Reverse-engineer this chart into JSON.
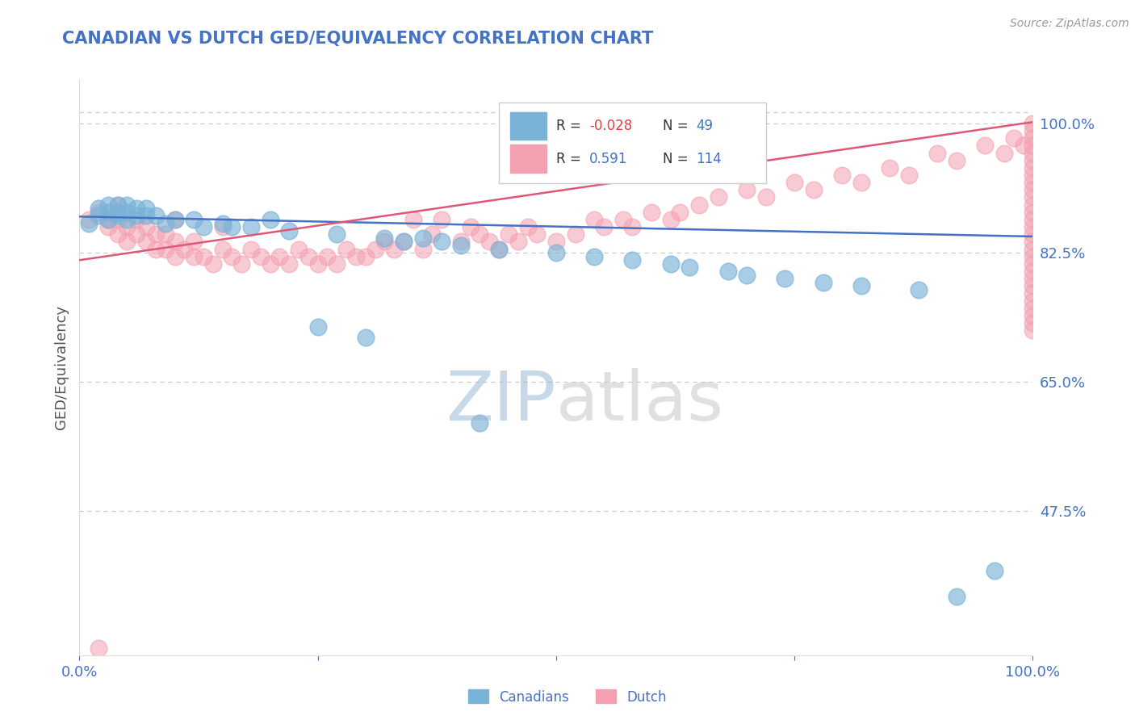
{
  "title": "CANADIAN VS DUTCH GED/EQUIVALENCY CORRELATION CHART",
  "source_text": "Source: ZipAtlas.com",
  "ylabel": "GED/Equivalency",
  "watermark": "ZIPatlas",
  "x_min": 0.0,
  "x_max": 1.0,
  "y_min": 0.28,
  "y_max": 1.06,
  "yticks": [
    0.475,
    0.65,
    0.825,
    1.0
  ],
  "ytick_labels": [
    "47.5%",
    "65.0%",
    "82.5%",
    "100.0%"
  ],
  "legend_R_canadian": "-0.028",
  "legend_N_canadian": "49",
  "legend_R_dutch": "0.591",
  "legend_N_dutch": "114",
  "canadian_color": "#7ab3d8",
  "dutch_color": "#f4a0b0",
  "canadian_line_color": "#4472c4",
  "dutch_line_color": "#e05878",
  "title_color": "#4472c4",
  "axis_label_color": "#555555",
  "tick_color": "#4472c4",
  "grid_color": "#c8c8c8",
  "background_color": "#ffffff",
  "canadian_x": [
    0.01,
    0.02,
    0.02,
    0.03,
    0.03,
    0.03,
    0.04,
    0.04,
    0.04,
    0.05,
    0.05,
    0.05,
    0.06,
    0.06,
    0.07,
    0.07,
    0.08,
    0.09,
    0.1,
    0.12,
    0.13,
    0.15,
    0.16,
    0.18,
    0.2,
    0.22,
    0.25,
    0.27,
    0.3,
    0.32,
    0.34,
    0.36,
    0.38,
    0.4,
    0.42,
    0.44,
    0.5,
    0.54,
    0.58,
    0.62,
    0.64,
    0.68,
    0.7,
    0.74,
    0.78,
    0.82,
    0.88,
    0.92,
    0.96
  ],
  "canadian_y": [
    0.865,
    0.875,
    0.885,
    0.87,
    0.88,
    0.89,
    0.875,
    0.88,
    0.89,
    0.87,
    0.88,
    0.89,
    0.875,
    0.885,
    0.875,
    0.885,
    0.875,
    0.865,
    0.87,
    0.87,
    0.86,
    0.865,
    0.86,
    0.86,
    0.87,
    0.855,
    0.725,
    0.85,
    0.71,
    0.845,
    0.84,
    0.845,
    0.84,
    0.835,
    0.595,
    0.83,
    0.825,
    0.82,
    0.815,
    0.81,
    0.805,
    0.8,
    0.795,
    0.79,
    0.785,
    0.78,
    0.775,
    0.36,
    0.395
  ],
  "dutch_x": [
    0.01,
    0.02,
    0.02,
    0.03,
    0.03,
    0.04,
    0.04,
    0.04,
    0.05,
    0.05,
    0.06,
    0.06,
    0.07,
    0.07,
    0.08,
    0.08,
    0.09,
    0.09,
    0.1,
    0.1,
    0.1,
    0.11,
    0.12,
    0.12,
    0.13,
    0.14,
    0.15,
    0.15,
    0.16,
    0.17,
    0.18,
    0.19,
    0.2,
    0.21,
    0.22,
    0.23,
    0.24,
    0.25,
    0.26,
    0.27,
    0.28,
    0.29,
    0.3,
    0.31,
    0.32,
    0.33,
    0.34,
    0.35,
    0.36,
    0.37,
    0.38,
    0.4,
    0.41,
    0.42,
    0.43,
    0.44,
    0.45,
    0.46,
    0.47,
    0.48,
    0.5,
    0.52,
    0.54,
    0.55,
    0.57,
    0.58,
    0.6,
    0.62,
    0.63,
    0.65,
    0.67,
    0.7,
    0.72,
    0.75,
    0.77,
    0.8,
    0.82,
    0.85,
    0.87,
    0.9,
    0.92,
    0.95,
    0.97,
    0.98,
    0.99,
    1.0,
    1.0,
    1.0,
    1.0,
    1.0,
    1.0,
    1.0,
    1.0,
    1.0,
    1.0,
    1.0,
    1.0,
    1.0,
    1.0,
    1.0,
    1.0,
    1.0,
    1.0,
    1.0,
    1.0,
    1.0,
    1.0,
    1.0,
    1.0,
    1.0,
    1.0,
    1.0,
    1.0,
    1.0
  ],
  "dutch_y": [
    0.87,
    0.29,
    0.88,
    0.86,
    0.87,
    0.85,
    0.87,
    0.89,
    0.84,
    0.86,
    0.85,
    0.87,
    0.84,
    0.86,
    0.83,
    0.85,
    0.83,
    0.85,
    0.82,
    0.84,
    0.87,
    0.83,
    0.82,
    0.84,
    0.82,
    0.81,
    0.83,
    0.86,
    0.82,
    0.81,
    0.83,
    0.82,
    0.81,
    0.82,
    0.81,
    0.83,
    0.82,
    0.81,
    0.82,
    0.81,
    0.83,
    0.82,
    0.82,
    0.83,
    0.84,
    0.83,
    0.84,
    0.87,
    0.83,
    0.85,
    0.87,
    0.84,
    0.86,
    0.85,
    0.84,
    0.83,
    0.85,
    0.84,
    0.86,
    0.85,
    0.84,
    0.85,
    0.87,
    0.86,
    0.87,
    0.86,
    0.88,
    0.87,
    0.88,
    0.89,
    0.9,
    0.91,
    0.9,
    0.92,
    0.91,
    0.93,
    0.92,
    0.94,
    0.93,
    0.96,
    0.95,
    0.97,
    0.96,
    0.98,
    0.97,
    1.0,
    0.99,
    0.98,
    0.97,
    0.96,
    0.95,
    0.94,
    0.93,
    0.92,
    0.91,
    0.9,
    0.89,
    0.88,
    0.87,
    0.86,
    0.85,
    0.84,
    0.83,
    0.82,
    0.81,
    0.8,
    0.79,
    0.78,
    0.77,
    0.76,
    0.75,
    0.74,
    0.73,
    0.72
  ],
  "can_trend_x0": 0.0,
  "can_trend_y0": 0.874,
  "can_trend_x1": 1.0,
  "can_trend_y1": 0.847,
  "dutch_trend_x0": 0.0,
  "dutch_trend_y0": 0.815,
  "dutch_trend_x1": 1.0,
  "dutch_trend_y1": 1.002
}
